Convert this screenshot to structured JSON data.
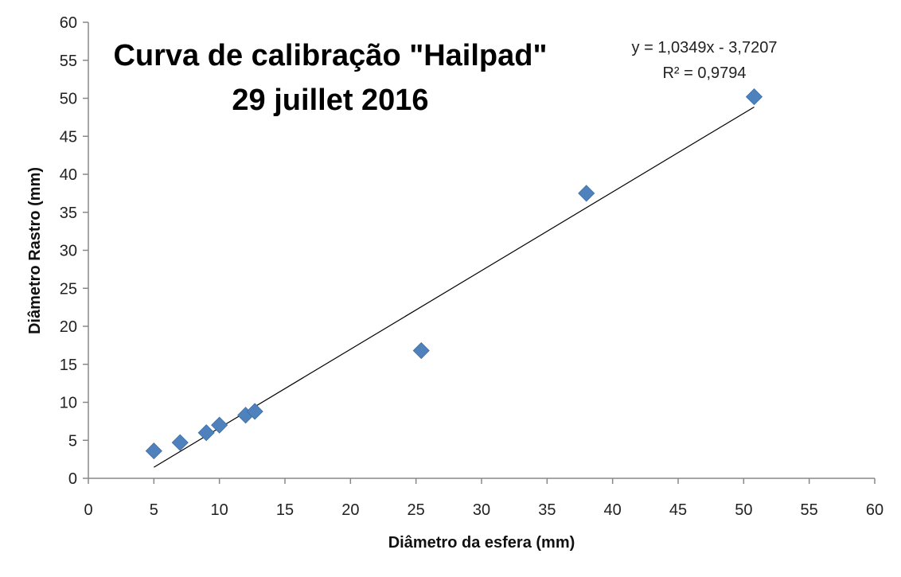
{
  "chart_data": {
    "type": "scatter",
    "title_lines": [
      "Curva de calibração \"Hailpad\"",
      "29 juillet 2016"
    ],
    "xlabel": "Diâmetro da esfera (mm)",
    "ylabel": "Diâmetro Rastro (mm)",
    "xlim": [
      0,
      60
    ],
    "ylim": [
      0,
      60
    ],
    "x_ticks": [
      0,
      5,
      10,
      15,
      20,
      25,
      30,
      35,
      40,
      45,
      50,
      55,
      60
    ],
    "y_ticks": [
      0,
      5,
      10,
      15,
      20,
      25,
      30,
      35,
      40,
      45,
      50,
      55,
      60
    ],
    "grid": false,
    "series": [
      {
        "color": "#4F81BD",
        "marker": "diamond",
        "points": [
          {
            "x": 5.0,
            "y": 3.6
          },
          {
            "x": 7.0,
            "y": 4.7
          },
          {
            "x": 9.0,
            "y": 6.0
          },
          {
            "x": 10.0,
            "y": 7.0
          },
          {
            "x": 12.0,
            "y": 8.3
          },
          {
            "x": 12.7,
            "y": 8.8
          },
          {
            "x": 25.4,
            "y": 16.8
          },
          {
            "x": 38.0,
            "y": 37.5
          },
          {
            "x": 50.8,
            "y": 50.2
          }
        ]
      }
    ],
    "trendline": {
      "slope": 1.0349,
      "intercept": -3.7207,
      "x_range": [
        5,
        50.8
      ],
      "color": "#000000",
      "equation_text": "y = 1,0349x - 3,7207",
      "r2_text": "R² = 0,9794"
    }
  }
}
